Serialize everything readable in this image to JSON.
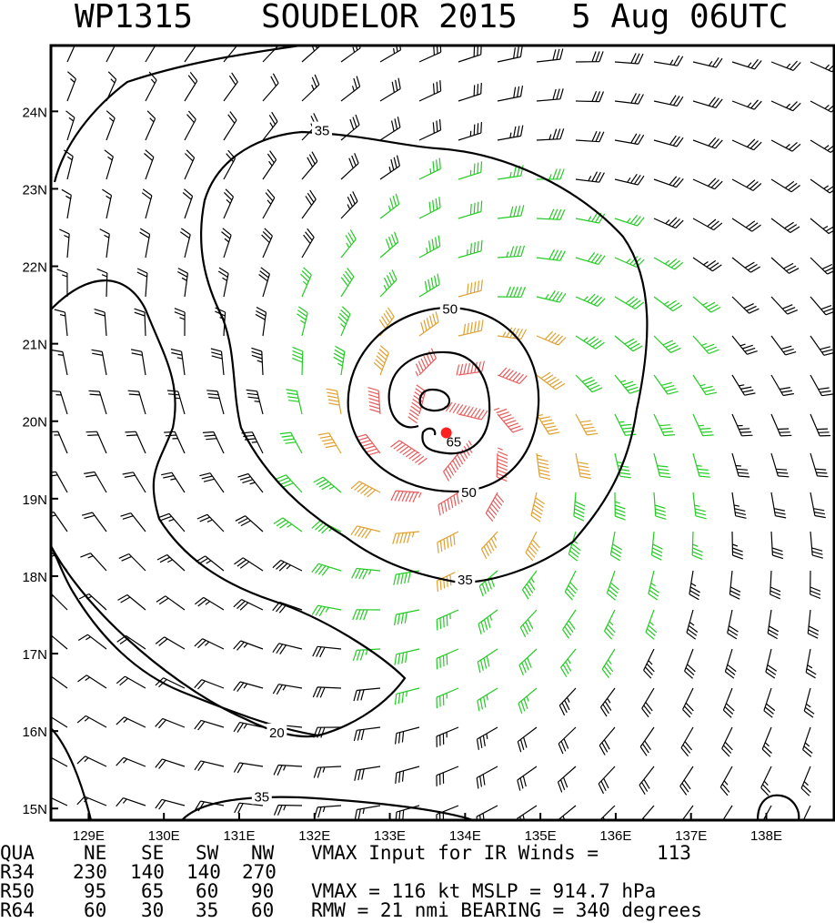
{
  "chart_data": {
    "type": "wind-analysis-map",
    "title": {
      "storm_id": "WP1315",
      "storm_name_year": "SOUDELOR 2015",
      "datetime": "5 Aug 06UTC"
    },
    "x_axis": {
      "range_deg_east": [
        128.5,
        138.9
      ],
      "ticks": [
        {
          "value": 129,
          "label": "129E"
        },
        {
          "value": 130,
          "label": "130E"
        },
        {
          "value": 131,
          "label": "131E"
        },
        {
          "value": 132,
          "label": "132E"
        },
        {
          "value": 133,
          "label": "133E"
        },
        {
          "value": 134,
          "label": "134E"
        },
        {
          "value": 135,
          "label": "135E"
        },
        {
          "value": 136,
          "label": "136E"
        },
        {
          "value": 137,
          "label": "137E"
        },
        {
          "value": 138,
          "label": "138E"
        }
      ]
    },
    "y_axis": {
      "range_deg_north": [
        14.85,
        24.85
      ],
      "ticks": [
        {
          "value": 15,
          "label": "15N"
        },
        {
          "value": 16,
          "label": "16N"
        },
        {
          "value": 17,
          "label": "17N"
        },
        {
          "value": 18,
          "label": "18N"
        },
        {
          "value": 19,
          "label": "19N"
        },
        {
          "value": 20,
          "label": "20N"
        },
        {
          "value": 21,
          "label": "21N"
        },
        {
          "value": 22,
          "label": "22N"
        },
        {
          "value": 23,
          "label": "23N"
        },
        {
          "value": 24,
          "label": "24N"
        }
      ]
    },
    "storm_center": {
      "lon": 133.75,
      "lat": 19.85
    },
    "contour_labels": [
      {
        "text": "35",
        "lon": 132.1,
        "lat": 23.75
      },
      {
        "text": "50",
        "lon": 133.8,
        "lat": 21.45
      },
      {
        "text": "65",
        "lon": 133.85,
        "lat": 19.73
      },
      {
        "text": "50",
        "lon": 134.05,
        "lat": 19.08
      },
      {
        "text": "35",
        "lon": 134.0,
        "lat": 17.95
      },
      {
        "text": "20",
        "lon": 131.5,
        "lat": 15.98
      },
      {
        "text": "35",
        "lon": 131.3,
        "lat": 15.15
      }
    ],
    "wind_speed_colors": {
      "calm": "#000000",
      "gale": "#22cc22",
      "storm": "#e0a030",
      "hurricane": "#e85a5a",
      "center": "#ff2020"
    },
    "footer": {
      "header_row": {
        "label": "QUA",
        "cols": [
          "NE",
          "SE",
          "SW",
          "NW"
        ],
        "note": "VMAX Input for IR Winds =",
        "note_value": "113"
      },
      "rows": [
        {
          "label": "R34",
          "values": [
            "230",
            "140",
            "140",
            "270"
          ],
          "note": "",
          "note_value": ""
        },
        {
          "label": "R50",
          "values": [
            "95",
            "65",
            "60",
            "90"
          ],
          "note": "VMAX = 116 kt MSLP = 914.7 hPa",
          "note_value": ""
        },
        {
          "label": "R64",
          "values": [
            "60",
            "30",
            "35",
            "60"
          ],
          "note": "RMW = 21 nmi BEARING = 340 degrees",
          "note_value": ""
        }
      ]
    }
  }
}
